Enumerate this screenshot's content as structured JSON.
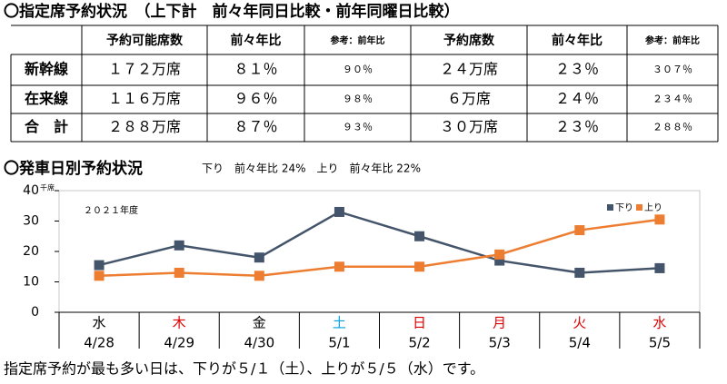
{
  "heading": "〇指定席予約状況　（上下計　前々年同日比較・前年同曜日比較）",
  "table": {
    "header": [
      "予約可能席数",
      "前々年比",
      "参考：前年比",
      "予約席数",
      "前々年比",
      "参考：前年比"
    ],
    "rows": [
      [
        "新幹線",
        "１７２万席",
        "８１％",
        "９０％",
        "２４万席",
        "２３％",
        "３０７％"
      ],
      [
        "在来線",
        "１１６万席",
        "９６％",
        "９８％",
        "６万席",
        "２４％",
        "２３４％"
      ],
      [
        "合　計",
        "２８８万席",
        "８７％",
        "９３％",
        "３０万席",
        "２３％",
        "２８８％"
      ]
    ]
  },
  "chart_heading": "〇発車日別予約状況",
  "chart_subheading": "下り　前々年比 24%　上り　前々年比 22%",
  "chart_data": {
    "type": "line",
    "annotation": "２０２１年度",
    "y_unit": "千席",
    "categories": [
      "4/28",
      "4/29",
      "4/30",
      "5/1",
      "5/2",
      "5/3",
      "5/4",
      "5/5"
    ],
    "weekdays": [
      "水",
      "木",
      "金",
      "土",
      "日",
      "月",
      "火",
      "水"
    ],
    "weekday_colors": [
      "#000000",
      "#e00000",
      "#000000",
      "#00a0e0",
      "#e00000",
      "#e00000",
      "#e00000",
      "#e00000"
    ],
    "ylim": [
      0,
      40
    ],
    "yticks": [
      0,
      10,
      20,
      30,
      40
    ],
    "grid": false,
    "legend": "top-right",
    "series": [
      {
        "name": "下り",
        "color": "#44546a",
        "values": [
          15.5,
          22,
          18,
          33,
          25,
          17,
          13,
          14.5
        ]
      },
      {
        "name": "上り",
        "color": "#ed7d31",
        "values": [
          12,
          13,
          12,
          15,
          15,
          19,
          27,
          30.5
        ]
      }
    ]
  },
  "footer": "指定席予約が最も多い日は、下りが５/１（土）、上りが５/５（水）です。"
}
